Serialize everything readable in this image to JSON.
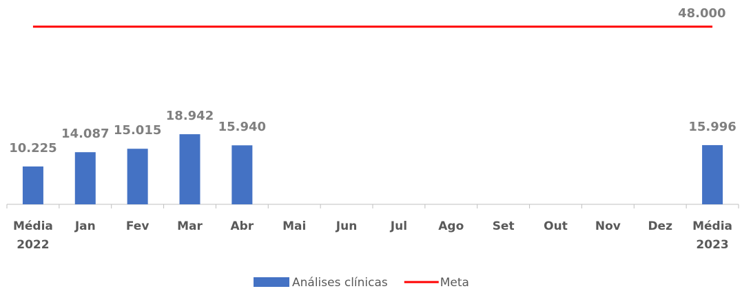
{
  "chart_data": {
    "type": "bar",
    "categories": [
      "Média\n2022",
      "Jan",
      "Fev",
      "Mar",
      "Abr",
      "Mai",
      "Jun",
      "Jul",
      "Ago",
      "Set",
      "Out",
      "Nov",
      "Dez",
      "Média\n2023"
    ],
    "series": [
      {
        "name": "Análises clínicas",
        "type": "bar",
        "color": "#4472c4",
        "values": [
          10225,
          14087,
          15015,
          18942,
          15940,
          null,
          null,
          null,
          null,
          null,
          null,
          null,
          null,
          15996
        ],
        "value_labels": [
          "10.225",
          "14.087",
          "15.015",
          "18.942",
          "15.940",
          null,
          null,
          null,
          null,
          null,
          null,
          null,
          null,
          "15.996"
        ]
      },
      {
        "name": "Meta",
        "type": "line",
        "color": "#ff0000",
        "values": [
          48000,
          48000,
          48000,
          48000,
          48000,
          48000,
          48000,
          48000,
          48000,
          48000,
          48000,
          48000,
          48000,
          48000
        ],
        "value_labels": [
          null,
          null,
          null,
          null,
          null,
          null,
          null,
          null,
          null,
          null,
          null,
          null,
          null,
          "48.000"
        ]
      }
    ],
    "ylim": [
      0,
      50000
    ],
    "legend": "bottom"
  }
}
